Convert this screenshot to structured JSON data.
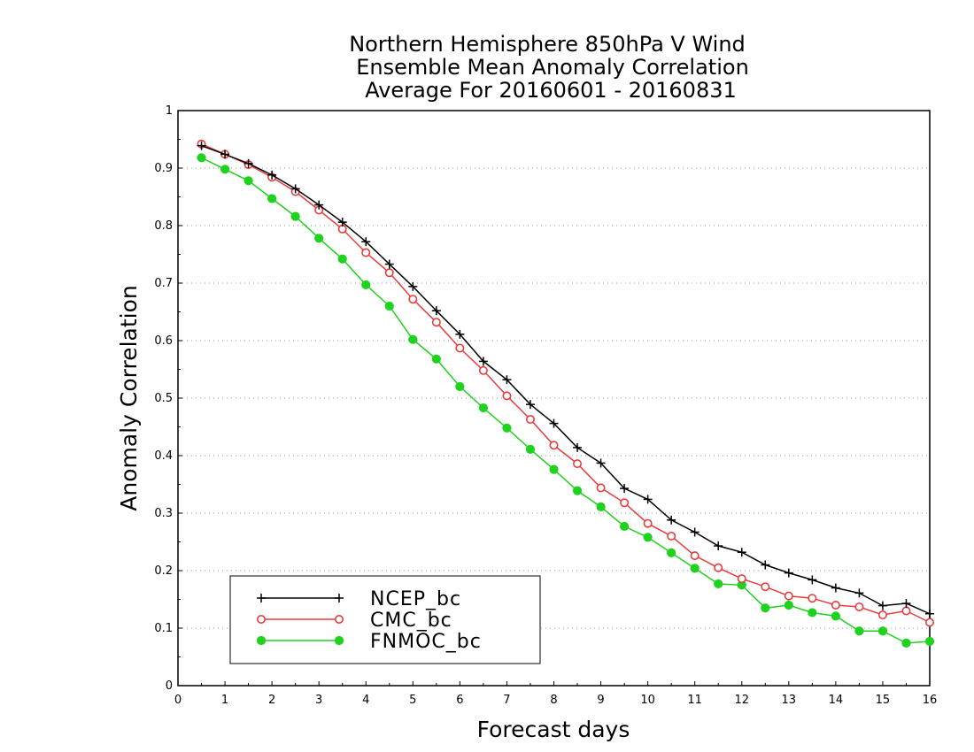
{
  "colors": {
    "NCEP_bc": "#000000",
    "CMC_bc": "#e83c3c",
    "FNMOC_bc": "#1ed21e",
    "grid": "#9a9a9a"
  },
  "chart_data": {
    "type": "line",
    "title": [
      "Northern Hemisphere 850hPa V Wind",
      "Ensemble Mean Anomaly Correlation",
      "Average For 20160601 - 20160831"
    ],
    "xlabel": "Forecast days",
    "ylabel": "Anomaly Correlation",
    "xlim": [
      0,
      16
    ],
    "ylim": [
      0,
      1
    ],
    "xticks": [
      "0",
      "1",
      "2",
      "3",
      "4",
      "5",
      "6",
      "7",
      "8",
      "9",
      "10",
      "11",
      "12",
      "13",
      "14",
      "15",
      "16"
    ],
    "yticks": [
      "0",
      "0.1",
      "0.2",
      "0.3",
      "0.4",
      "0.5",
      "0.6",
      "0.7",
      "0.8",
      "0.9",
      "1"
    ],
    "grid": "horizontal dotted",
    "legend_position": "bottom-left",
    "x": [
      0.5,
      1,
      1.5,
      2,
      2.5,
      3,
      3.5,
      4,
      4.5,
      5,
      5.5,
      6,
      6.5,
      7,
      7.5,
      8,
      8.5,
      9,
      9.5,
      10,
      10.5,
      11,
      11.5,
      12,
      12.5,
      13,
      13.5,
      14,
      14.5,
      15,
      15.5,
      16
    ],
    "series": [
      {
        "name": "NCEP_bc",
        "marker": "plus",
        "values": [
          0.939,
          0.924,
          0.908,
          0.888,
          0.864,
          0.836,
          0.806,
          0.772,
          0.733,
          0.694,
          0.652,
          0.611,
          0.564,
          0.532,
          0.489,
          0.456,
          0.414,
          0.387,
          0.343,
          0.324,
          0.288,
          0.267,
          0.243,
          0.232,
          0.21,
          0.196,
          0.184,
          0.17,
          0.161,
          0.139,
          0.143,
          0.125
        ]
      },
      {
        "name": "CMC_bc",
        "marker": "open-circle",
        "values": [
          0.942,
          0.924,
          0.906,
          0.884,
          0.859,
          0.827,
          0.794,
          0.753,
          0.718,
          0.672,
          0.632,
          0.587,
          0.548,
          0.504,
          0.463,
          0.418,
          0.386,
          0.344,
          0.318,
          0.282,
          0.26,
          0.226,
          0.205,
          0.186,
          0.172,
          0.156,
          0.152,
          0.14,
          0.137,
          0.123,
          0.13,
          0.11
        ]
      },
      {
        "name": "FNMOC_bc",
        "marker": "filled-circle",
        "values": [
          0.918,
          0.898,
          0.878,
          0.847,
          0.816,
          0.778,
          0.742,
          0.697,
          0.66,
          0.602,
          0.568,
          0.52,
          0.483,
          0.448,
          0.411,
          0.376,
          0.339,
          0.311,
          0.277,
          0.258,
          0.231,
          0.204,
          0.177,
          0.175,
          0.135,
          0.14,
          0.127,
          0.121,
          0.095,
          0.095,
          0.074,
          0.077
        ]
      }
    ]
  }
}
